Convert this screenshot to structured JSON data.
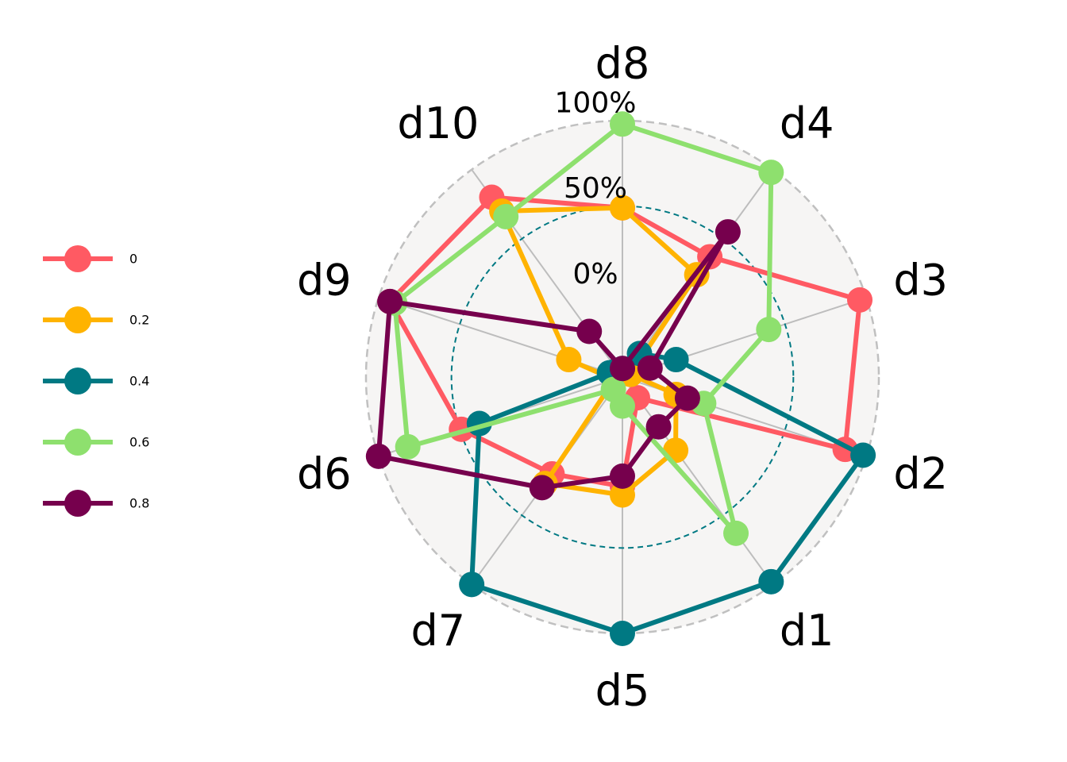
{
  "chart_data": {
    "type": "radar",
    "axes": [
      "d8",
      "d4",
      "d3",
      "d2",
      "d1",
      "d5",
      "d7",
      "d6",
      "d9",
      "d10"
    ],
    "rlim": [
      -50,
      100
    ],
    "tick_labels": [
      "0%",
      "50%",
      "100%"
    ],
    "legend_placement": "left",
    "grid": true,
    "series": [
      {
        "name": "0",
        "color": "#ff5a63",
        "values": [
          49,
          37,
          96,
          87,
          -35,
          14,
          20,
          49,
          93,
          80
        ]
      },
      {
        "name": "0.2",
        "color": "#ffb300",
        "values": [
          49,
          24,
          -45,
          -17,
          3,
          19,
          27,
          -45,
          -17,
          70
        ]
      },
      {
        "name": "0.4",
        "color": "#007983",
        "values": [
          -45,
          -33,
          -17,
          98,
          98,
          100,
          100,
          38,
          -42,
          -45
        ]
      },
      {
        "name": "0.6",
        "color": "#8ee06e",
        "values": [
          98,
          98,
          40,
          0,
          63,
          -33,
          -41,
          82,
          90,
          66
        ]
      },
      {
        "name": "0.8",
        "color": "#76004d",
        "values": [
          -45,
          55,
          -33,
          -10,
          -14,
          8,
          30,
          100,
          93,
          -17
        ]
      }
    ]
  }
}
